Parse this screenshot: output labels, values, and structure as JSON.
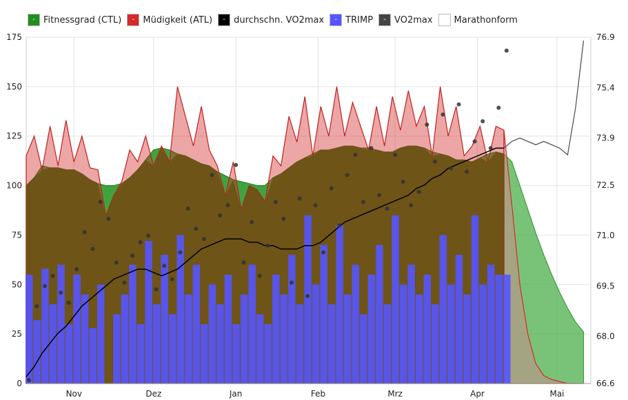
{
  "legend": [
    {
      "label": "Fitnessgrad (CTL)",
      "color": "#1f8f1f"
    },
    {
      "label": "Müdigkeit (ATL)",
      "color": "#d42a2a"
    },
    {
      "label": "durchschn. VO2max",
      "color": "#000000"
    },
    {
      "label": "TRIMP",
      "color": "#5555ff"
    },
    {
      "label": "VO2max",
      "color": "#444444"
    },
    {
      "label": "Marathonform",
      "color": "#ffffff"
    }
  ],
  "chart_data": {
    "type": "area",
    "x_unit": "days since start (3-day sampling)",
    "left_axis": {
      "ylim": [
        0,
        175
      ],
      "ticks": [
        "0",
        "25",
        "50",
        "75",
        "100",
        "125",
        "150",
        "175"
      ]
    },
    "right_axis": {
      "ylim": [
        66.6,
        76.9
      ],
      "ticks": [
        "66.6",
        "68.0",
        "69.5",
        "71.0",
        "72.5",
        "73.9",
        "75.4",
        "76.9"
      ]
    },
    "x_ticks": [
      {
        "label": "Nov",
        "day": 18
      },
      {
        "label": "Dez",
        "day": 48
      },
      {
        "label": "Jan",
        "day": 79
      },
      {
        "label": "Feb",
        "day": 110
      },
      {
        "label": "Mrz",
        "day": 139
      },
      {
        "label": "Apr",
        "day": 170
      },
      {
        "label": "Mai",
        "day": 200
      }
    ],
    "step_days": 3,
    "ctl": [
      100,
      104,
      110,
      109,
      109,
      108,
      108,
      106,
      103,
      101,
      100,
      100,
      101,
      104,
      108,
      113,
      118,
      119,
      118,
      116,
      115,
      113,
      111,
      110,
      107,
      105,
      103,
      102,
      101,
      100,
      100,
      104,
      106,
      109,
      112,
      114,
      116,
      118,
      118,
      119,
      120,
      120,
      119,
      119,
      118,
      117,
      117,
      119,
      120,
      120,
      119,
      117,
      116,
      115,
      113,
      113,
      112,
      114,
      116,
      117,
      116
    ],
    "atl": [
      115,
      125,
      108,
      130,
      110,
      133,
      112,
      125,
      109,
      108,
      85,
      95,
      102,
      118,
      112,
      125,
      110,
      120,
      112,
      150,
      135,
      120,
      140,
      118,
      110,
      95,
      112,
      88,
      100,
      98,
      92,
      115,
      110,
      135,
      122,
      145,
      115,
      140,
      125,
      150,
      125,
      142,
      130,
      118,
      140,
      120,
      145,
      128,
      148,
      130,
      140,
      115,
      150,
      125,
      140,
      115,
      120,
      130,
      112,
      130,
      128
    ],
    "trimp": [
      55,
      32,
      58,
      40,
      60,
      30,
      55,
      45,
      28,
      50,
      0,
      35,
      45,
      60,
      30,
      72,
      40,
      65,
      35,
      75,
      45,
      60,
      30,
      50,
      40,
      55,
      30,
      45,
      60,
      35,
      30,
      55,
      45,
      65,
      40,
      85,
      50,
      70,
      40,
      80,
      45,
      60,
      35,
      55,
      70,
      40,
      85,
      50,
      60,
      45,
      55,
      40,
      75,
      50,
      65,
      45,
      85,
      50,
      60,
      55,
      55
    ],
    "vo2max": [
      66.7,
      68.9,
      69.5,
      69.8,
      69.3,
      69.0,
      70.0,
      71.1,
      70.6,
      72.0,
      71.5,
      70.2,
      69.6,
      70.4,
      70.8,
      71.0,
      69.4,
      70.1,
      69.7,
      70.5,
      71.8,
      71.2,
      70.9,
      72.8,
      71.6,
      71.9,
      73.1,
      70.2,
      71.4,
      69.8,
      70.7,
      72.0,
      71.5,
      69.6,
      72.1,
      69.2,
      71.9,
      70.5,
      72.4,
      71.3,
      72.8,
      73.4,
      72.0,
      73.6,
      72.2,
      71.8,
      73.4,
      72.6,
      71.9,
      72.3,
      74.3,
      73.2,
      74.6,
      73.0,
      74.9,
      72.9,
      73.8,
      74.4,
      73.6,
      74.8,
      76.5
    ],
    "vo2max_avg": [
      66.8,
      67.1,
      67.5,
      67.8,
      68.1,
      68.3,
      68.6,
      68.9,
      69.1,
      69.3,
      69.5,
      69.7,
      69.8,
      69.9,
      70.0,
      70.0,
      69.9,
      69.8,
      69.9,
      70.0,
      70.2,
      70.4,
      70.6,
      70.7,
      70.8,
      70.9,
      70.9,
      70.9,
      70.8,
      70.8,
      70.7,
      70.7,
      70.6,
      70.6,
      70.6,
      70.7,
      70.7,
      70.8,
      71.0,
      71.2,
      71.4,
      71.5,
      71.6,
      71.7,
      71.8,
      71.9,
      72.0,
      72.1,
      72.2,
      72.4,
      72.5,
      72.7,
      72.8,
      73.0,
      73.1,
      73.2,
      73.3,
      73.4,
      73.5,
      73.6,
      73.6
    ],
    "forecast_start_day": 183,
    "ctl_forecast": [
      112,
      100,
      88,
      76,
      65,
      55,
      46,
      38,
      31,
      26
    ],
    "atl_forecast": [
      90,
      50,
      25,
      10,
      4,
      2,
      1,
      0,
      0,
      0
    ],
    "marathonform": [
      73.8,
      73.9,
      73.8,
      73.7,
      73.8,
      73.7,
      73.6,
      73.4,
      74.8,
      76.8
    ]
  }
}
